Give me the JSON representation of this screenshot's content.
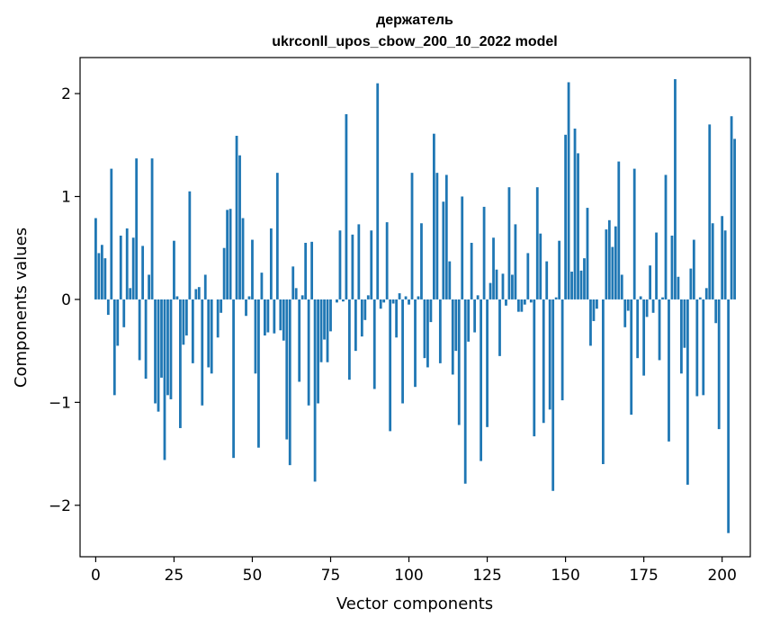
{
  "chart_data": {
    "type": "bar",
    "title": "держатель",
    "subtitle": "ukrconll_upos_cbow_200_10_2022 model",
    "xlabel": "Vector components",
    "ylabel": "Components values",
    "xlim": [
      -5,
      209
    ],
    "ylim": [
      -2.5,
      2.35
    ],
    "xticks": [
      0,
      25,
      50,
      75,
      100,
      125,
      150,
      175,
      200
    ],
    "xtick_labels": [
      "0",
      "25",
      "50",
      "75",
      "100",
      "125",
      "150",
      "175",
      "200"
    ],
    "yticks": [
      -2,
      -1,
      0,
      1,
      2
    ],
    "ytick_labels": [
      "−2",
      "−1",
      "0",
      "1",
      "2"
    ],
    "bar_color": "#1f77b4",
    "categories_start": 0,
    "values": [
      0.79,
      0.45,
      0.53,
      0.4,
      -0.15,
      1.27,
      -0.93,
      -0.45,
      0.62,
      -0.27,
      0.69,
      0.11,
      0.6,
      1.37,
      -0.59,
      0.52,
      -0.77,
      0.24,
      1.37,
      -1.01,
      -1.09,
      -0.76,
      -1.56,
      -0.93,
      -0.97,
      0.57,
      0.03,
      -1.25,
      -0.44,
      -0.35,
      1.05,
      -0.62,
      0.1,
      0.12,
      -1.03,
      0.24,
      -0.66,
      -0.72,
      0.0,
      -0.37,
      -0.13,
      0.5,
      0.87,
      0.88,
      -1.54,
      1.59,
      1.4,
      0.79,
      -0.16,
      0.03,
      0.58,
      -0.72,
      -1.44,
      0.26,
      -0.35,
      -0.32,
      0.69,
      -0.33,
      1.23,
      -0.3,
      -0.4,
      -1.36,
      -1.61,
      0.32,
      0.11,
      -0.8,
      0.04,
      0.55,
      -1.03,
      0.56,
      -1.77,
      -1.01,
      -0.61,
      -0.39,
      -0.61,
      -0.31,
      0.0,
      -0.03,
      0.67,
      -0.02,
      1.8,
      -0.78,
      0.63,
      -0.5,
      0.73,
      -0.36,
      -0.2,
      0.04,
      0.67,
      -0.87,
      2.1,
      -0.09,
      -0.03,
      0.75,
      -1.28,
      -0.04,
      -0.37,
      0.06,
      -1.01,
      0.03,
      -0.05,
      1.23,
      -0.85,
      0.03,
      0.74,
      -0.57,
      -0.66,
      -0.22,
      1.61,
      1.23,
      -0.62,
      0.95,
      1.21,
      0.37,
      -0.73,
      -0.5,
      -1.22,
      1.0,
      -1.79,
      -0.41,
      0.55,
      -0.32,
      0.04,
      -1.57,
      0.9,
      -1.24,
      0.16,
      0.6,
      0.29,
      -0.55,
      0.25,
      -0.06,
      1.09,
      0.24,
      0.73,
      -0.12,
      -0.12,
      -0.05,
      0.45,
      -0.03,
      -1.33,
      1.09,
      0.64,
      -1.2,
      0.37,
      -1.07,
      -1.86,
      0.02,
      0.57,
      -0.98,
      1.6,
      2.11,
      0.27,
      1.66,
      1.42,
      0.28,
      0.4,
      0.89,
      -0.45,
      -0.21,
      -0.09,
      0.0,
      -1.6,
      0.68,
      0.77,
      0.51,
      0.71,
      1.34,
      0.24,
      -0.27,
      -0.11,
      -1.12,
      1.27,
      -0.57,
      0.03,
      -0.74,
      -0.17,
      0.33,
      -0.13,
      0.65,
      -0.59,
      0.02,
      1.21,
      -1.38,
      0.62,
      2.14,
      0.22,
      -0.72,
      -0.47,
      -1.8,
      0.3,
      0.58,
      -0.94,
      0.02,
      -0.93,
      0.11,
      1.7,
      0.74,
      -0.23,
      -1.26,
      0.81,
      0.67,
      -2.27,
      1.78,
      1.56
    ]
  }
}
